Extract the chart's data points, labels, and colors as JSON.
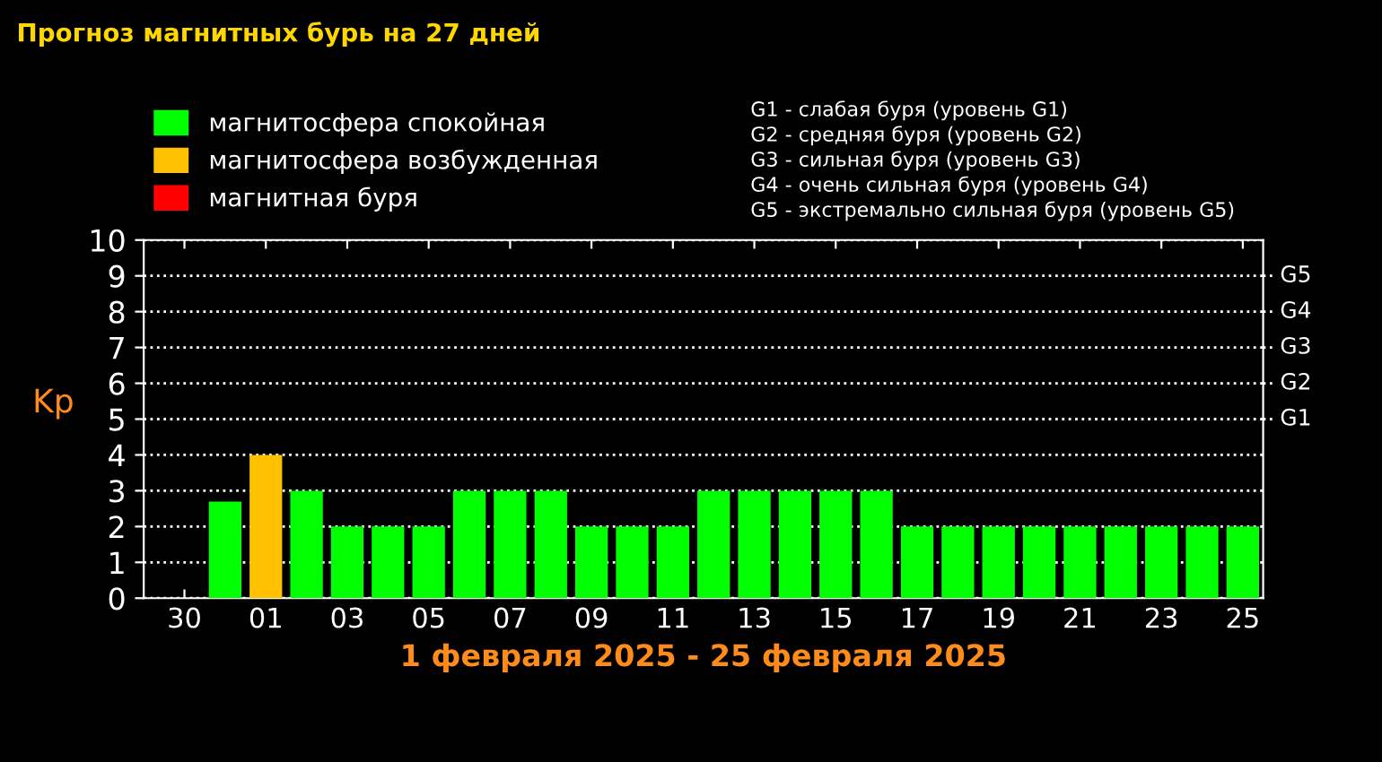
{
  "chart_data": {
    "type": "bar",
    "title": "Прогноз магнитных бурь на 27 дней",
    "xlabel": "1 февраля 2025 - 25 февраля 2025",
    "ylabel": "Kp",
    "categories": [
      "30",
      null,
      "01",
      null,
      "03",
      null,
      "05",
      null,
      "07",
      null,
      "09",
      null,
      "11",
      null,
      "13",
      null,
      "15",
      null,
      "17",
      null,
      "19",
      null,
      "21",
      null,
      "23",
      null,
      "25"
    ],
    "series": [
      {
        "name": "магнитосфера спокойная",
        "color": "#00ff00",
        "values": [
          null,
          2.7,
          null,
          3,
          2,
          2,
          2,
          3,
          3,
          3,
          2,
          2,
          2,
          3,
          3,
          3,
          3,
          3,
          2,
          2,
          2,
          2,
          2,
          2,
          2,
          2,
          2
        ]
      },
      {
        "name": "магнитосфера возбужденная",
        "color": "#ffc000",
        "values": [
          null,
          null,
          4,
          null,
          null,
          null,
          null,
          null,
          null,
          null,
          null,
          null,
          null,
          null,
          null,
          null,
          null,
          null,
          null,
          null,
          null,
          null,
          null,
          null,
          null,
          null,
          null
        ]
      },
      {
        "name": "магнитная буря",
        "color": "#ff0000",
        "values": [
          null,
          null,
          null,
          null,
          null,
          null,
          null,
          null,
          null,
          null,
          null,
          null,
          null,
          null,
          null,
          null,
          null,
          null,
          null,
          null,
          null,
          null,
          null,
          null,
          null,
          null,
          null
        ]
      }
    ],
    "ylim": [
      0,
      10
    ],
    "yticks": [
      0,
      1,
      2,
      3,
      4,
      5,
      6,
      7,
      8,
      9,
      10
    ],
    "ref_lines": [
      {
        "axis": "y",
        "value": 5,
        "label": "G1",
        "color": "#ffffff",
        "line_style": "dotted"
      },
      {
        "axis": "y",
        "value": 6,
        "label": "G2",
        "color": "#ffffff",
        "line_style": "dotted"
      },
      {
        "axis": "y",
        "value": 7,
        "label": "G3",
        "color": "#ffffff",
        "line_style": "dotted"
      },
      {
        "axis": "y",
        "value": 8,
        "label": "G4",
        "color": "#ffffff",
        "line_style": "dotted"
      },
      {
        "axis": "y",
        "value": 9,
        "label": "G5",
        "color": "#ffffff",
        "line_style": "dotted"
      }
    ],
    "annotations": [
      "G1 - слабая буря (уровень G1)",
      "G2 - средняя буря (уровень G2)",
      "G3 - сильная буря (уровень G3)",
      "G4 - очень сильная буря (уровень G4)",
      "G5 - экстремально сильная буря (уровень G5)"
    ],
    "grid": "y",
    "legend": "top left"
  }
}
